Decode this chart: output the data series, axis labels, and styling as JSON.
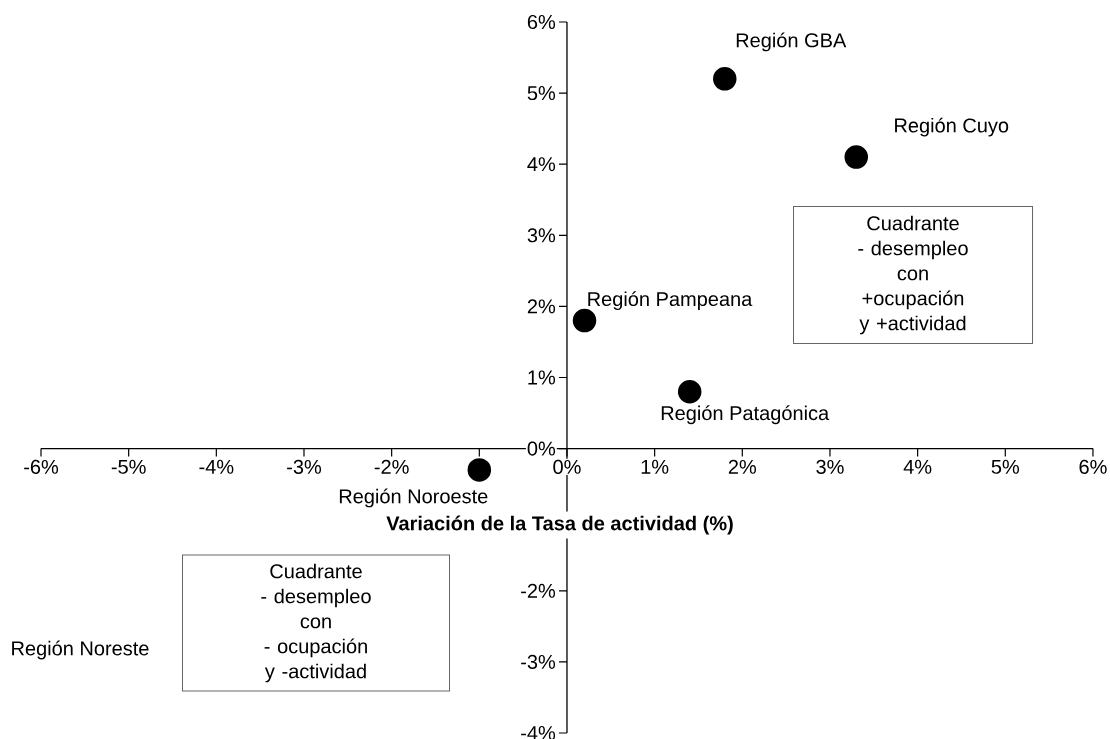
{
  "chart_data": {
    "type": "scatter",
    "xlabel": "Variación de la Tasa de actividad (%)",
    "series": [
      {
        "color": "#000000",
        "x": [
          1.8,
          3.3,
          0.2,
          1.4,
          -1.0
        ],
        "values": [
          5.2,
          4.1,
          1.8,
          0.8,
          -0.3
        ]
      }
    ],
    "marker": "circle",
    "xlim": [
      -6,
      6
    ],
    "ylim": [
      -4,
      6
    ],
    "xticks": [
      {
        "value": -6,
        "label": "-6%"
      },
      {
        "value": -5,
        "label": "-5%"
      },
      {
        "value": -4,
        "label": "-4%"
      },
      {
        "value": -3,
        "label": "-3%"
      },
      {
        "value": -2,
        "label": "-2%"
      },
      {
        "value": -1,
        "label": null
      },
      {
        "value": 0,
        "label": "0%"
      },
      {
        "value": 1,
        "label": "1%"
      },
      {
        "value": 2,
        "label": "2%"
      },
      {
        "value": 3,
        "label": "3%"
      },
      {
        "value": 4,
        "label": "4%"
      },
      {
        "value": 5,
        "label": "5%"
      },
      {
        "value": 6,
        "label": "6%"
      }
    ],
    "yticks": [
      {
        "value": -4,
        "label": "-4%"
      },
      {
        "value": -3,
        "label": "-3%"
      },
      {
        "value": -2,
        "label": "-2%"
      },
      {
        "value": 0,
        "label": "0%"
      },
      {
        "value": 1,
        "label": "1%"
      },
      {
        "value": 2,
        "label": "2%"
      },
      {
        "value": 3,
        "label": "3%"
      },
      {
        "value": 4,
        "label": "4%"
      },
      {
        "value": 5,
        "label": "5%"
      },
      {
        "value": 6,
        "label": "6%"
      }
    ],
    "annotations": [
      {
        "text": "Región GBA",
        "x": 1.8,
        "y": 5.2
      },
      {
        "text": "Región Cuyo",
        "x": 3.3,
        "y": 4.1
      },
      {
        "text": "Región Pampeana",
        "x": 0.2,
        "y": 1.8
      },
      {
        "text": "Región Patagónica",
        "x": 1.4,
        "y": 0.8
      },
      {
        "text": "Región Noroeste",
        "x": -1.0,
        "y": -0.3
      },
      "Región Noreste",
      "Cuadrante\n- desempleo\ncon\n+ocupación\ny +actividad",
      "Cuadrante\n- desempleo\ncon\n- ocupación\ny -actividad"
    ]
  }
}
